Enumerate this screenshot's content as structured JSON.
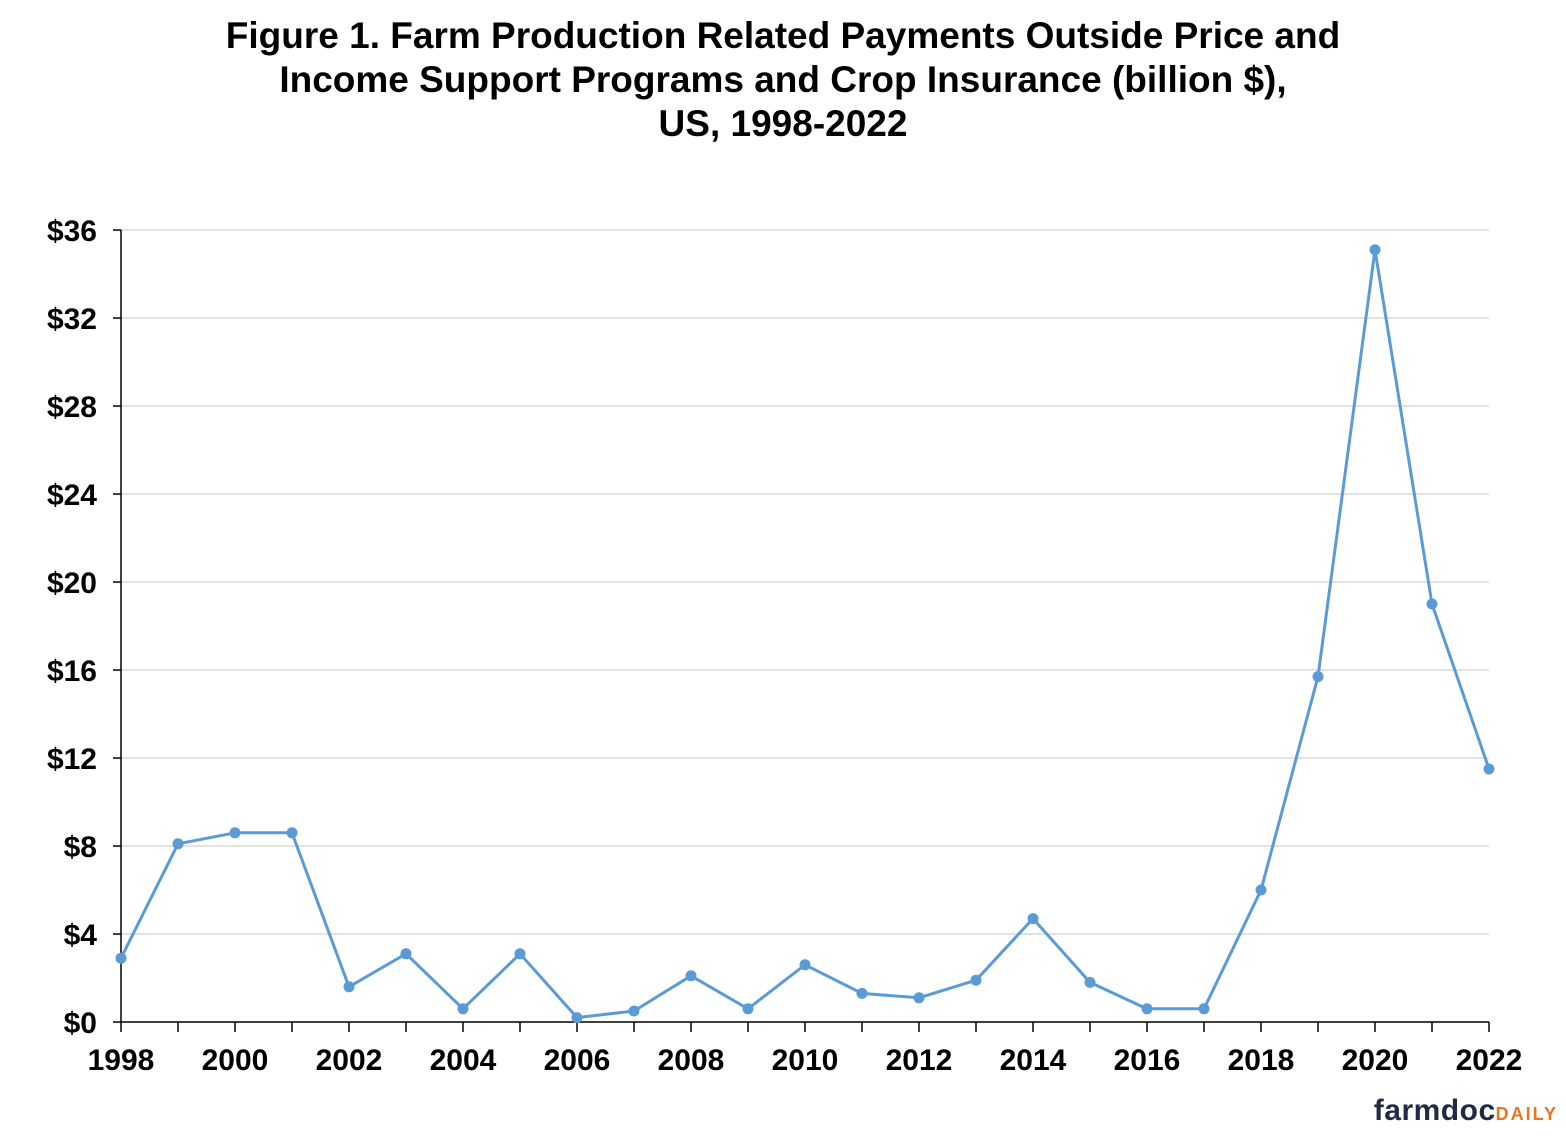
{
  "title_lines": [
    "Figure 1. Farm Production Related Payments Outside Price and",
    "Income Support Programs and Crop Insurance (billion $),",
    "US, 1998-2022"
  ],
  "brand": {
    "main": "farmdoc",
    "sub": "DAILY"
  },
  "colors": {
    "series": "#5B9BD5",
    "grid": "#d9d9d9",
    "axis": "#000000"
  },
  "chart_data": {
    "type": "line",
    "title": "Figure 1. Farm Production Related Payments Outside Price and Income Support Programs and Crop Insurance (billion $), US, 1998-2022",
    "xlabel": "",
    "ylabel": "",
    "x": [
      1998,
      1999,
      2000,
      2001,
      2002,
      2003,
      2004,
      2005,
      2006,
      2007,
      2008,
      2009,
      2010,
      2011,
      2012,
      2013,
      2014,
      2015,
      2016,
      2017,
      2018,
      2019,
      2020,
      2021,
      2022
    ],
    "series": [
      {
        "name": "",
        "values": [
          2.9,
          8.1,
          8.6,
          8.6,
          1.6,
          3.1,
          0.6,
          3.1,
          0.2,
          0.5,
          2.1,
          0.6,
          2.6,
          1.3,
          1.1,
          1.9,
          4.7,
          1.8,
          0.6,
          0.6,
          6.0,
          15.7,
          35.1,
          19.0,
          11.5
        ]
      }
    ],
    "xlim": [
      1998,
      2022
    ],
    "ylim": [
      0,
      36
    ],
    "yticks": [
      0,
      4,
      8,
      12,
      16,
      20,
      24,
      28,
      32,
      36
    ],
    "ytick_labels": [
      "$0",
      "$4",
      "$8",
      "$12",
      "$16",
      "$20",
      "$24",
      "$28",
      "$32",
      "$36"
    ],
    "xtick_labels": [
      "1998",
      "2000",
      "2002",
      "2004",
      "2006",
      "2008",
      "2010",
      "2012",
      "2014",
      "2016",
      "2018",
      "2020",
      "2022"
    ],
    "grid": true,
    "legend": "none"
  }
}
